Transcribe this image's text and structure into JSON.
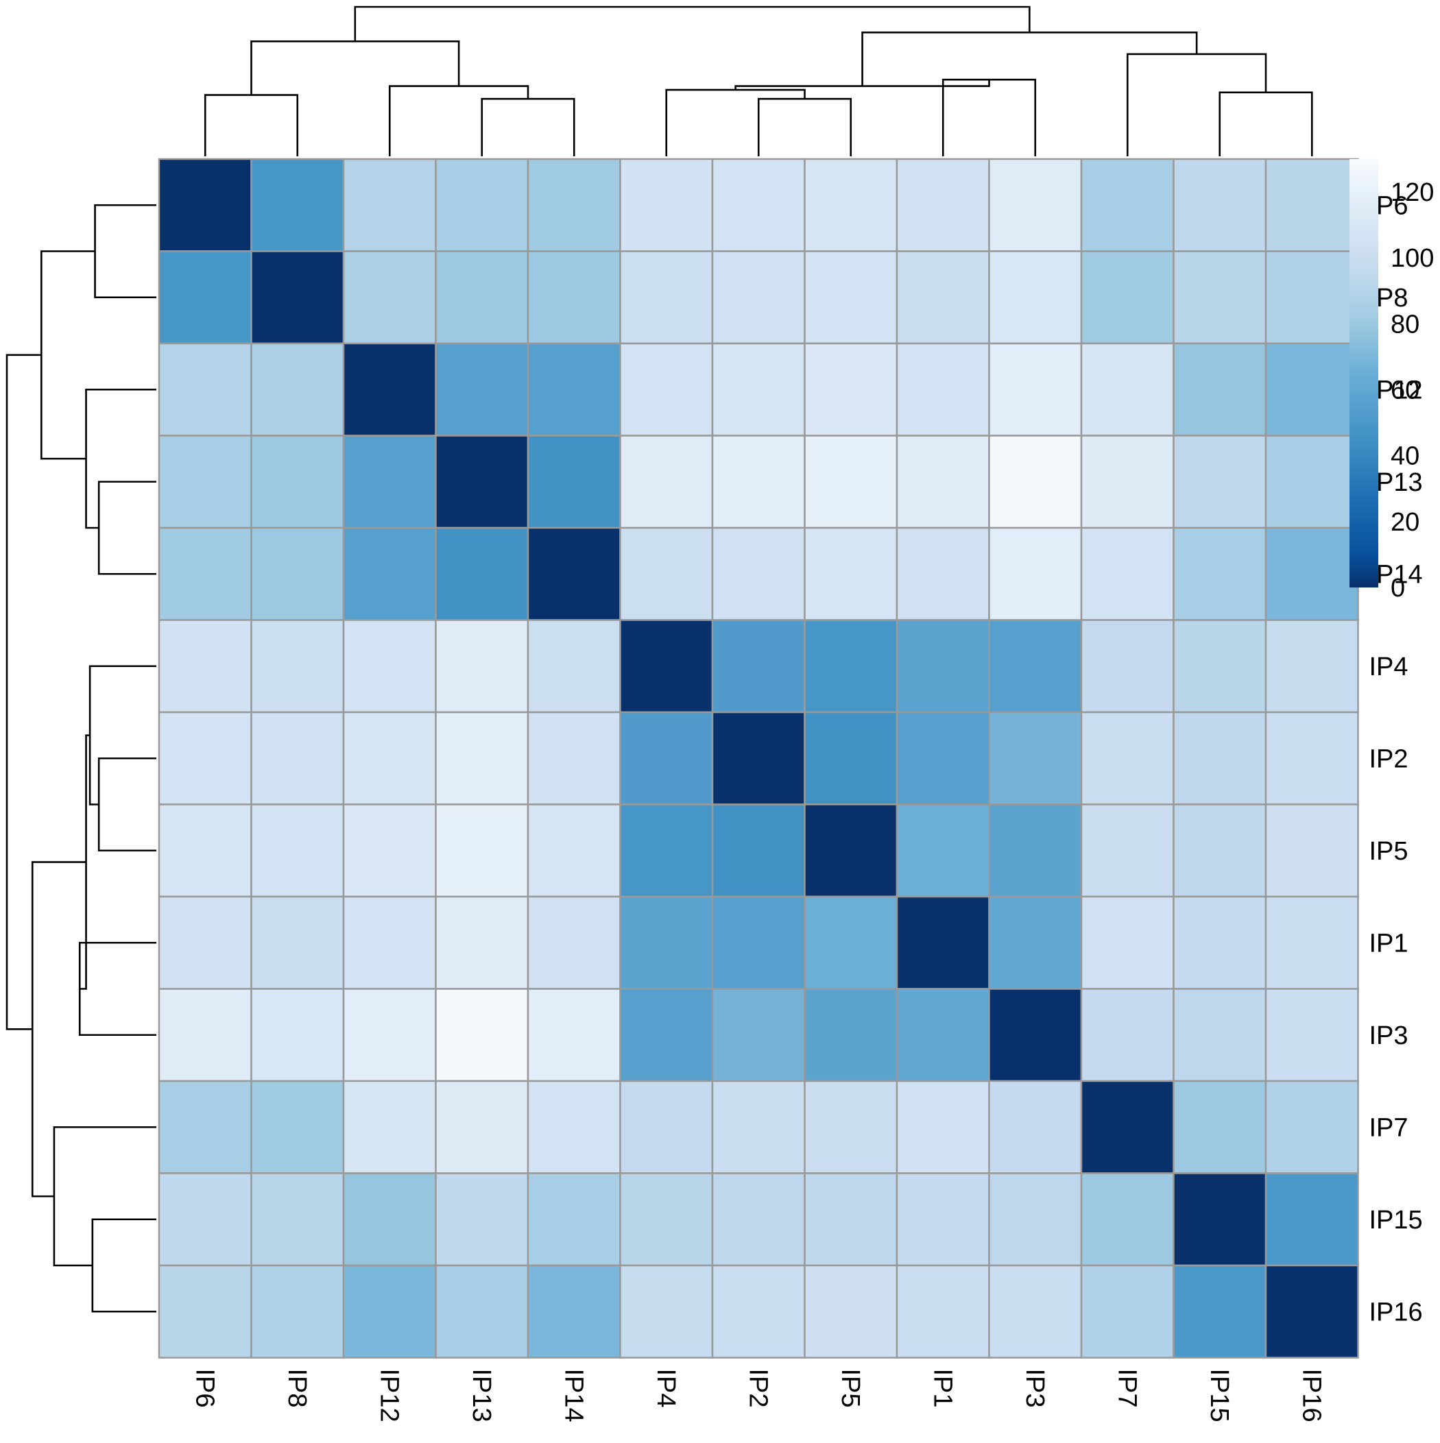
{
  "chart_data": {
    "type": "heatmap",
    "title": "",
    "xlabel": "",
    "ylabel": "",
    "rows": [
      "IP6",
      "IP8",
      "IP12",
      "IP13",
      "IP14",
      "IP4",
      "IP2",
      "IP5",
      "IP1",
      "IP3",
      "IP7",
      "IP15",
      "IP16"
    ],
    "columns": [
      "IP6",
      "IP8",
      "IP12",
      "IP13",
      "IP14",
      "IP4",
      "IP2",
      "IP5",
      "IP1",
      "IP3",
      "IP7",
      "IP15",
      "IP16"
    ],
    "values": [
      [
        0,
        48,
        90,
        85,
        82,
        105,
        106,
        108,
        105,
        115,
        85,
        95,
        92
      ],
      [
        48,
        0,
        86,
        80,
        80,
        102,
        104,
        106,
        101,
        110,
        82,
        92,
        88
      ],
      [
        90,
        86,
        0,
        55,
        55,
        106,
        108,
        112,
        106,
        116,
        108,
        78,
        70
      ],
      [
        85,
        80,
        55,
        0,
        45,
        115,
        117,
        120,
        115,
        128,
        114,
        95,
        85
      ],
      [
        82,
        80,
        55,
        45,
        0,
        102,
        104,
        108,
        104,
        116,
        106,
        85,
        70
      ],
      [
        105,
        102,
        106,
        115,
        102,
        0,
        52,
        48,
        58,
        55,
        97,
        92,
        98
      ],
      [
        106,
        104,
        108,
        117,
        104,
        52,
        0,
        45,
        55,
        68,
        101,
        94,
        101
      ],
      [
        108,
        106,
        112,
        120,
        108,
        48,
        45,
        0,
        65,
        58,
        100,
        94,
        103
      ],
      [
        105,
        101,
        106,
        115,
        104,
        58,
        55,
        65,
        0,
        60,
        104,
        97,
        101
      ],
      [
        115,
        110,
        116,
        128,
        116,
        55,
        68,
        58,
        60,
        0,
        97,
        94,
        101
      ],
      [
        85,
        82,
        108,
        114,
        106,
        97,
        101,
        100,
        104,
        97,
        0,
        80,
        88
      ],
      [
        95,
        92,
        78,
        95,
        85,
        92,
        94,
        94,
        97,
        94,
        80,
        0,
        50
      ],
      [
        92,
        88,
        70,
        85,
        70,
        98,
        101,
        103,
        101,
        101,
        88,
        50,
        0
      ]
    ],
    "color_scale": {
      "min": 0,
      "max": 130,
      "low_color": "#08306b",
      "high_color": "#f7fbff",
      "ticks": [
        0,
        20,
        40,
        60,
        80,
        100,
        120
      ]
    },
    "cell_border_color": "#999999",
    "col_dendrogram": {
      "leaves": [
        "IP6",
        "IP8",
        "IP12",
        "IP13",
        "IP14",
        "IP4",
        "IP2",
        "IP5",
        "IP1",
        "IP3",
        "IP7",
        "IP15",
        "IP16"
      ],
      "merges": [
        {
          "a": 0,
          "b": 1,
          "height": 48
        },
        {
          "a": 3,
          "b": 4,
          "height": 45
        },
        {
          "a": 2,
          "b": 14,
          "height": 55
        },
        {
          "a": 13,
          "b": 15,
          "height": 90
        },
        {
          "a": 6,
          "b": 7,
          "height": 45
        },
        {
          "a": 5,
          "b": 17,
          "height": 52
        },
        {
          "a": 8,
          "b": 9,
          "height": 60
        },
        {
          "a": 18,
          "b": 19,
          "height": 55
        },
        {
          "a": 11,
          "b": 12,
          "height": 50
        },
        {
          "a": 10,
          "b": 21,
          "height": 80
        },
        {
          "a": 20,
          "b": 22,
          "height": 97
        },
        {
          "a": 16,
          "b": 23,
          "height": 117
        }
      ],
      "max_height": 117
    },
    "row_dendrogram": {
      "leaves": [
        "IP6",
        "IP8",
        "IP12",
        "IP13",
        "IP14",
        "IP4",
        "IP2",
        "IP5",
        "IP1",
        "IP3",
        "IP7",
        "IP15",
        "IP16"
      ],
      "merges": [
        {
          "a": 0,
          "b": 1,
          "height": 48
        },
        {
          "a": 3,
          "b": 4,
          "height": 45
        },
        {
          "a": 2,
          "b": 14,
          "height": 55
        },
        {
          "a": 13,
          "b": 15,
          "height": 90
        },
        {
          "a": 6,
          "b": 7,
          "height": 45
        },
        {
          "a": 5,
          "b": 17,
          "height": 52
        },
        {
          "a": 8,
          "b": 9,
          "height": 60
        },
        {
          "a": 18,
          "b": 19,
          "height": 55
        },
        {
          "a": 11,
          "b": 12,
          "height": 50
        },
        {
          "a": 10,
          "b": 21,
          "height": 80
        },
        {
          "a": 20,
          "b": 22,
          "height": 97
        },
        {
          "a": 16,
          "b": 23,
          "height": 117
        }
      ],
      "max_height": 117
    }
  }
}
